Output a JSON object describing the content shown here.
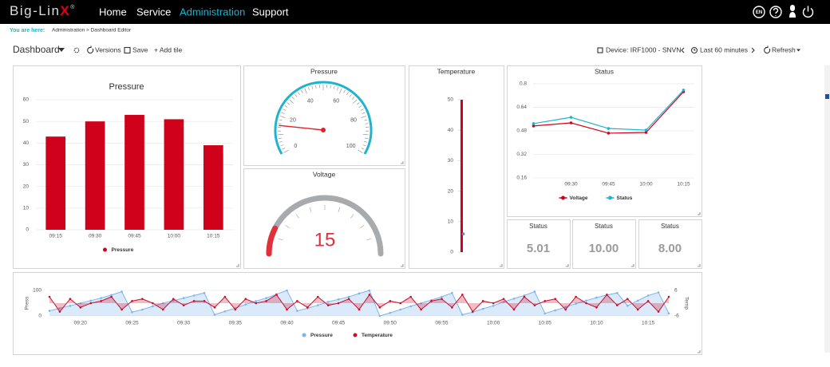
{
  "header": {
    "logo": {
      "text": "Big-Lin",
      "accent": "X",
      "mark": "®"
    },
    "nav": [
      "Home",
      "Service",
      "Administration",
      "Support"
    ],
    "active": 2,
    "language": "EN"
  },
  "breadcrumb": {
    "label": "You are here:",
    "path": "Administration > Dashboard Editor"
  },
  "toolbar": {
    "dashboard": "Dashboard",
    "versions": "Versions",
    "save": "Save",
    "add_tile": "+ Add tile",
    "device": "Device: IRF1000 - SNVN",
    "range": "Last 60 minutes",
    "refresh": "Refresh"
  },
  "tiles": [
    {
      "type": "bar",
      "title": "Pressure",
      "categories": [
        "09:15",
        "09:30",
        "09:45",
        "10:00",
        "10:15"
      ],
      "series": [
        {
          "name": "Pressure",
          "color": "#d0021b",
          "values": [
            43,
            50,
            53,
            51,
            39
          ]
        }
      ],
      "ylim": [
        0,
        60
      ],
      "yticks": [
        0,
        10,
        20,
        30,
        40,
        50,
        60
      ],
      "grid": true
    },
    {
      "type": "gauge",
      "title": "Pressure",
      "value": 15,
      "range": [
        0,
        100
      ],
      "ticks": [
        0,
        20,
        40,
        60,
        80,
        100
      ],
      "color": "#1fb3d1",
      "needle_color": "#e0202c"
    },
    {
      "type": "solid_gauge",
      "title": "Voltage",
      "value": 15,
      "range": [
        0,
        100
      ],
      "color": "#e0303c"
    },
    {
      "type": "thermometer",
      "title": "Temperature",
      "value": 50,
      "marker": 6,
      "ylim": [
        0,
        50
      ],
      "yticks": [
        0,
        10,
        20,
        30,
        40,
        50
      ],
      "color": "#d0021b",
      "marker_color": "#4a90d9"
    },
    {
      "type": "line",
      "title": "Status",
      "categories": [
        null,
        "09:30",
        "09:45",
        "10:00",
        "10:15"
      ],
      "series": [
        {
          "name": "Voltage",
          "color": "#d0021b",
          "values": [
            0.513,
            0.534,
            0.464,
            0.469,
            0.746
          ]
        },
        {
          "name": "Status",
          "color": "#1fb3d1",
          "values": [
            0.529,
            0.572,
            0.496,
            0.485,
            0.757
          ]
        }
      ],
      "ylim": [
        0.1,
        0.8
      ],
      "yticks": [
        0.16,
        0.32,
        0.48,
        0.64,
        0.8
      ],
      "grid": true,
      "legend": "bottom"
    },
    {
      "type": "stat",
      "title": "Status",
      "value": "5.01"
    },
    {
      "type": "stat",
      "title": "Status",
      "value": "10.00"
    },
    {
      "type": "stat",
      "title": "Status",
      "value": "8.00"
    },
    {
      "type": "combo",
      "ylabel": "Press",
      "y2label": "Temp",
      "categories": [
        null,
        null,
        null,
        "09:20",
        null,
        null,
        null,
        null,
        "09:25",
        null,
        null,
        null,
        null,
        "09:30",
        null,
        null,
        null,
        null,
        "09:35",
        null,
        null,
        null,
        null,
        "09:40",
        null,
        null,
        null,
        null,
        "09:45",
        null,
        null,
        null,
        null,
        "09:50",
        null,
        null,
        null,
        null,
        "09:55",
        null,
        null,
        null,
        null,
        "10:00",
        null,
        null,
        null,
        null,
        "10:05",
        null,
        null,
        null,
        null,
        "10:10",
        null,
        null,
        null,
        null,
        "10:15",
        null,
        null
      ],
      "series": [
        {
          "name": "Pressure",
          "color": "#7cb5ec",
          "axis": "y",
          "area": true,
          "values": [
            20,
            30,
            40,
            50,
            60,
            70,
            82,
            95,
            15,
            25,
            38,
            50,
            60,
            70,
            80,
            90,
            5,
            18,
            30,
            45,
            58,
            70,
            85,
            100,
            20,
            30,
            42,
            55,
            65,
            75,
            88,
            100,
            0,
            12,
            25,
            38,
            50,
            62,
            75,
            90,
            5,
            15,
            28,
            40,
            55,
            68,
            80,
            95,
            10,
            22,
            35,
            48,
            60,
            72,
            82,
            90,
            40,
            60,
            80,
            92,
            10
          ]
        },
        {
          "name": "Temperature",
          "color": "#c8102e",
          "axis": "y2",
          "area": true,
          "values": [
            3,
            -4,
            2,
            -2,
            0,
            1,
            3,
            -3,
            1,
            2,
            0,
            -3,
            2,
            -1,
            1,
            1,
            -2,
            3,
            -3,
            2,
            0,
            1,
            4,
            -3,
            1,
            -2,
            3,
            -1,
            0,
            2,
            -3,
            4,
            -2,
            1,
            0,
            3,
            -3,
            1,
            2,
            -2,
            4,
            -4,
            1,
            0,
            2,
            -3,
            3,
            -1,
            1,
            2,
            -3,
            3,
            0,
            -2,
            4,
            -1,
            2,
            -3,
            1,
            -4,
            3
          ]
        }
      ],
      "ylim": [
        0,
        100
      ],
      "yticks": [
        0,
        100
      ],
      "y2lim": [
        -6,
        6
      ],
      "y2ticks": [
        -6,
        6
      ],
      "legend": "bottom"
    }
  ]
}
